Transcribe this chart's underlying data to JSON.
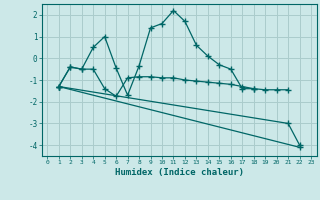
{
  "title": "",
  "xlabel": "Humidex (Indice chaleur)",
  "background_color": "#cce8e8",
  "line_color": "#006666",
  "grid_color": "#aacccc",
  "xlim": [
    -0.5,
    23.5
  ],
  "ylim": [
    -4.5,
    2.5
  ],
  "yticks": [
    -4,
    -3,
    -2,
    -1,
    0,
    1,
    2
  ],
  "xticks": [
    0,
    1,
    2,
    3,
    4,
    5,
    6,
    7,
    8,
    9,
    10,
    11,
    12,
    13,
    14,
    15,
    16,
    17,
    18,
    19,
    20,
    21,
    22,
    23
  ],
  "lines": [
    {
      "x": [
        1,
        2,
        3,
        4,
        5,
        6,
        7,
        8,
        9,
        10,
        11,
        12,
        13,
        14,
        15,
        16,
        17,
        18
      ],
      "y": [
        -1.3,
        -0.4,
        -0.5,
        0.5,
        1.0,
        -0.45,
        -1.7,
        -0.35,
        1.4,
        1.6,
        2.2,
        1.7,
        0.6,
        0.1,
        -0.3,
        -0.5,
        -1.4,
        -1.4
      ]
    },
    {
      "x": [
        1,
        2,
        3,
        4,
        5,
        6,
        7,
        8,
        9,
        10,
        11,
        12,
        13,
        14,
        15,
        16,
        17,
        18,
        19,
        20,
        21
      ],
      "y": [
        -1.3,
        -0.4,
        -0.5,
        -0.5,
        -1.4,
        -1.75,
        -0.9,
        -0.85,
        -0.85,
        -0.9,
        -0.9,
        -1.0,
        -1.05,
        -1.1,
        -1.15,
        -1.2,
        -1.3,
        -1.4,
        -1.45,
        -1.45,
        -1.45
      ]
    },
    {
      "x": [
        1,
        22
      ],
      "y": [
        -1.3,
        -4.1
      ]
    },
    {
      "x": [
        1,
        21,
        22
      ],
      "y": [
        -1.3,
        -3.0,
        -4.0
      ]
    }
  ]
}
